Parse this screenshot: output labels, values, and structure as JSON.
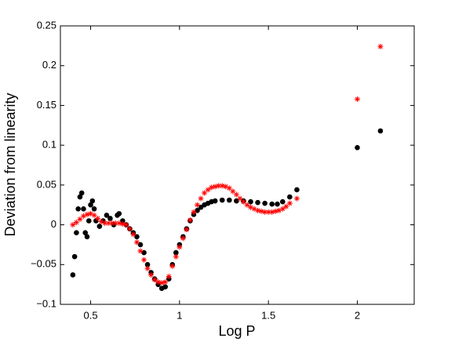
{
  "chart_data": {
    "type": "scatter",
    "x_label": "Log P",
    "y_label": "Deviation from linearity",
    "xlim": [
      0.33,
      2.32
    ],
    "ylim": [
      -0.1,
      0.25
    ],
    "xticks": [
      0.5,
      1,
      1.5,
      2
    ],
    "yticks": [
      {
        "value": -0.1,
        "label": "−0.1"
      },
      {
        "value": -0.05,
        "label": "−0.05"
      },
      0,
      0.05,
      0.1,
      0.15,
      0.2,
      0.25
    ],
    "grid": false,
    "series": [
      {
        "color": "#000000",
        "marker": "dot",
        "x": [
          0.4,
          0.41,
          0.42,
          0.43,
          0.44,
          0.45,
          0.46,
          0.47,
          0.48,
          0.49,
          0.5,
          0.51,
          0.52,
          0.53,
          0.55,
          0.57,
          0.59,
          0.61,
          0.63,
          0.65,
          0.66,
          0.68,
          0.7,
          0.72,
          0.74,
          0.76,
          0.78,
          0.8,
          0.82,
          0.84,
          0.86,
          0.88,
          0.9,
          0.92,
          0.94,
          0.96,
          0.98,
          1.0,
          1.02,
          1.04,
          1.06,
          1.08,
          1.1,
          1.12,
          1.14,
          1.16,
          1.18,
          1.2,
          1.24,
          1.28,
          1.32,
          1.36,
          1.4,
          1.44,
          1.48,
          1.52,
          1.55,
          1.58,
          1.62,
          1.66,
          2.0,
          2.13
        ],
        "values": [
          -0.063,
          -0.04,
          -0.01,
          0.02,
          0.035,
          0.04,
          0.02,
          -0.01,
          -0.015,
          0.005,
          0.025,
          0.03,
          0.02,
          0.005,
          -0.002,
          0.005,
          0.012,
          0.008,
          0.0,
          0.012,
          0.014,
          0.005,
          0.0,
          -0.005,
          -0.01,
          -0.015,
          -0.025,
          -0.035,
          -0.05,
          -0.06,
          -0.068,
          -0.075,
          -0.08,
          -0.078,
          -0.068,
          -0.05,
          -0.035,
          -0.025,
          -0.015,
          -0.005,
          0.005,
          0.013,
          0.018,
          0.022,
          0.025,
          0.027,
          0.029,
          0.03,
          0.031,
          0.031,
          0.03,
          0.03,
          0.029,
          0.028,
          0.027,
          0.026,
          0.026,
          0.029,
          0.035,
          0.044,
          0.097,
          0.118
        ]
      },
      {
        "color": "#ff0000",
        "marker": "asterisk",
        "x": [
          0.4,
          0.42,
          0.44,
          0.46,
          0.48,
          0.5,
          0.52,
          0.54,
          0.56,
          0.58,
          0.6,
          0.62,
          0.64,
          0.66,
          0.68,
          0.7,
          0.72,
          0.74,
          0.76,
          0.78,
          0.8,
          0.82,
          0.84,
          0.86,
          0.88,
          0.9,
          0.92,
          0.94,
          0.96,
          0.98,
          1.0,
          1.02,
          1.04,
          1.06,
          1.08,
          1.1,
          1.12,
          1.14,
          1.16,
          1.18,
          1.2,
          1.22,
          1.24,
          1.26,
          1.28,
          1.3,
          1.32,
          1.34,
          1.36,
          1.38,
          1.4,
          1.42,
          1.44,
          1.46,
          1.48,
          1.5,
          1.52,
          1.54,
          1.56,
          1.58,
          1.6,
          1.62,
          1.66,
          2.0,
          2.13
        ],
        "values": [
          0.0,
          0.003,
          0.007,
          0.011,
          0.013,
          0.014,
          0.012,
          0.008,
          0.004,
          0.002,
          0.002,
          0.002,
          0.002,
          0.002,
          0.001,
          0.0,
          -0.005,
          -0.012,
          -0.022,
          -0.033,
          -0.044,
          -0.055,
          -0.063,
          -0.069,
          -0.072,
          -0.073,
          -0.072,
          -0.065,
          -0.052,
          -0.04,
          -0.028,
          -0.017,
          -0.006,
          0.006,
          0.016,
          0.025,
          0.033,
          0.04,
          0.044,
          0.047,
          0.048,
          0.049,
          0.049,
          0.048,
          0.046,
          0.042,
          0.038,
          0.033,
          0.029,
          0.025,
          0.022,
          0.02,
          0.018,
          0.017,
          0.016,
          0.016,
          0.016,
          0.017,
          0.018,
          0.02,
          0.023,
          0.027,
          0.033,
          0.158,
          0.224
        ]
      }
    ]
  }
}
